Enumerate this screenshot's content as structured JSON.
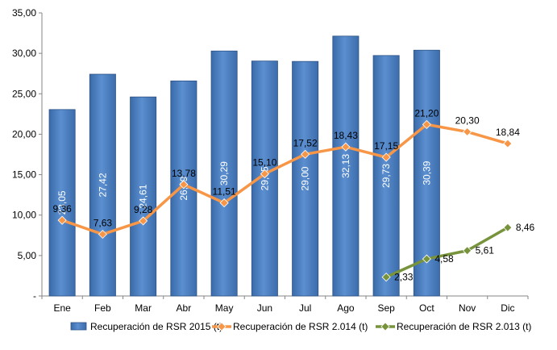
{
  "chart_data": {
    "type": "bar",
    "categories": [
      "Ene",
      "Feb",
      "Mar",
      "Abr",
      "May",
      "Jun",
      "Jul",
      "Ago",
      "Sep",
      "Oct",
      "Nov",
      "Dic"
    ],
    "ylim": [
      0,
      35
    ],
    "y_ticks": [
      "-",
      "5,00",
      "10,00",
      "15,00",
      "20,00",
      "25,00",
      "30,00",
      "35,00"
    ],
    "grid": false,
    "legend_position": "bottom",
    "series": [
      {
        "name": "Recuperación de RSR 2015 (t)",
        "type": "bar",
        "color": "#4a7ebb",
        "values": [
          23.05,
          27.42,
          24.61,
          26.59,
          30.29,
          29.05,
          29.0,
          32.13,
          29.73,
          30.39,
          null,
          null
        ],
        "labels": [
          "23,05",
          "27,42",
          "24,61",
          "26,59",
          "30,29",
          "29,05",
          "29,00",
          "32,13",
          "29,73",
          "30,39",
          null,
          null
        ]
      },
      {
        "name": "Recuperación de RSR 2.014 (t)",
        "type": "line",
        "color": "#f79646",
        "values": [
          9.36,
          7.63,
          9.28,
          13.78,
          11.51,
          15.1,
          17.52,
          18.43,
          17.15,
          21.2,
          20.3,
          18.84
        ],
        "labels": [
          "9,36",
          "7,63",
          "9,28",
          "13,78",
          "11,51",
          "15,10",
          "17,52",
          "18,43",
          "17,15",
          "21,20",
          "20,30",
          "18,84"
        ]
      },
      {
        "name": "Recuperación de RSR 2.013 (t)",
        "type": "line",
        "color": "#77933c",
        "values": [
          null,
          null,
          null,
          null,
          null,
          null,
          null,
          null,
          2.33,
          4.58,
          5.61,
          8.46
        ],
        "labels": [
          null,
          null,
          null,
          null,
          null,
          null,
          null,
          null,
          "2,33",
          "4,58",
          "5,61",
          "8,46"
        ]
      }
    ]
  }
}
